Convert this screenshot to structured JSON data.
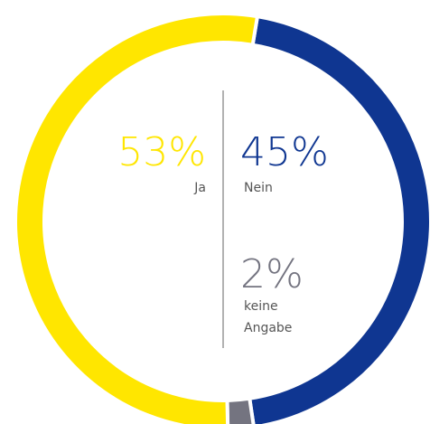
{
  "chart_data": {
    "type": "donut",
    "categories": [
      "Nein",
      "keine Angabe",
      "Ja"
    ],
    "values": [
      45,
      2,
      53
    ],
    "value_labels": [
      "45%",
      "2%",
      "53%"
    ],
    "colors": [
      "#0f3691",
      "#747480",
      "#ffe600"
    ]
  }
}
